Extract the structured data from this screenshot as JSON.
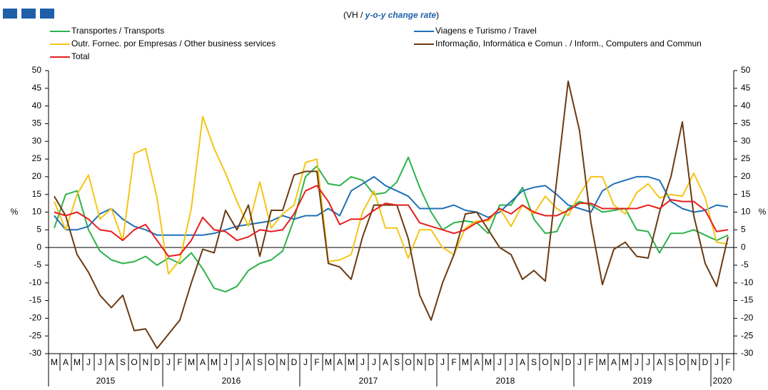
{
  "chart_data": {
    "type": "line",
    "subtitle": {
      "prefix": "(VH / ",
      "emphasis": "y-o-y change rate",
      "suffix": ")"
    },
    "y_label": "%",
    "y2_label": "%",
    "categories": [
      "M",
      "A",
      "M",
      "J",
      "J",
      "A",
      "S",
      "O",
      "N",
      "D",
      "J",
      "F",
      "M",
      "A",
      "M",
      "J",
      "J",
      "A",
      "S",
      "O",
      "N",
      "D",
      "J",
      "F",
      "M",
      "A",
      "M",
      "J",
      "J",
      "A",
      "S",
      "O",
      "N",
      "D",
      "J",
      "F",
      "M",
      "A",
      "M",
      "J",
      "J",
      "A",
      "S",
      "O",
      "N",
      "D",
      "J",
      "F",
      "M",
      "A",
      "M",
      "J",
      "J",
      "A",
      "S",
      "O",
      "N",
      "D",
      "J",
      "F"
    ],
    "x_groups": [
      {
        "label": "2015",
        "count": 10
      },
      {
        "label": "2016",
        "count": 12
      },
      {
        "label": "2017",
        "count": 12
      },
      {
        "label": "2018",
        "count": 12
      },
      {
        "label": "2019",
        "count": 12
      },
      {
        "label": "2020",
        "count": 2
      }
    ],
    "ylim": [
      -30,
      50
    ],
    "yticks": [
      -30,
      -25,
      -20,
      -15,
      -10,
      -5,
      0,
      5,
      10,
      15,
      20,
      25,
      30,
      35,
      40,
      45,
      50
    ],
    "y2lim": [
      -30,
      50
    ],
    "y2ticks": [
      -30,
      -25,
      -20,
      -15,
      -10,
      -5,
      0,
      5,
      10,
      15,
      20,
      25,
      30,
      35,
      40,
      45,
      50
    ],
    "grid": false,
    "series": [
      {
        "name": "Transportes / Transports",
        "color": "#2db34a",
        "values": [
          5.5,
          15,
          16,
          5,
          -1,
          -3.5,
          -4.5,
          -4,
          -2.5,
          -5,
          -3,
          -4.5,
          -1.5,
          -6,
          -11.5,
          -12.5,
          -11,
          -6.5,
          -4.5,
          -3.5,
          -1,
          8,
          20,
          23,
          18,
          17.5,
          20,
          19,
          15,
          15.5,
          18.5,
          25.5,
          17,
          10,
          5,
          7,
          7.5,
          7,
          4,
          12,
          12,
          17,
          8,
          4,
          4.5,
          11,
          13,
          12,
          10,
          10.5,
          11,
          5,
          4.5,
          -1.5,
          4,
          4,
          5,
          3.5,
          2,
          3.5
        ]
      },
      {
        "name": "Viagens e Turismo / Travel",
        "color": "#1f70b8",
        "values": [
          9,
          5,
          5,
          6,
          9.5,
          11,
          8,
          6,
          5,
          3.5,
          3.5,
          3.5,
          3.5,
          3.5,
          4,
          5,
          6,
          6.5,
          7,
          7.5,
          9,
          8,
          9,
          9,
          11,
          9,
          16,
          18,
          20,
          17.5,
          16,
          14.5,
          11,
          11,
          11,
          12,
          10.5,
          10,
          8.5,
          10,
          13,
          16,
          17,
          17.5,
          15,
          12,
          11,
          10,
          16,
          18,
          19,
          20,
          20,
          19,
          13,
          11,
          10,
          10.5,
          12,
          11.5
        ]
      },
      {
        "name": "Outr. Fornec. por Empresas / Other business services",
        "color": "#f5c518",
        "values": [
          13,
          5,
          15,
          20.5,
          8,
          11,
          2,
          26.5,
          28,
          14,
          -7.5,
          -3.5,
          11,
          37,
          28,
          21,
          13,
          6,
          18.5,
          5.5,
          9.5,
          12,
          24,
          25,
          -4,
          -3.5,
          -2,
          10,
          16,
          5.5,
          5.5,
          -3,
          5,
          5,
          0,
          -2,
          5.5,
          7.5,
          7.5,
          11,
          6,
          12,
          9.5,
          14.5,
          11,
          9,
          15,
          20,
          20,
          12,
          9.5,
          15.5,
          18,
          14,
          15,
          14.5,
          21,
          14,
          1.5,
          1
        ]
      },
      {
        "name": "Informação, Informática e Comun . / Inform., Computers and Commun",
        "color": "#6b3a12",
        "values": [
          14.5,
          9,
          -2,
          -7,
          -13.5,
          -17,
          -13.5,
          -23.5,
          -23,
          -28.5,
          -24.5,
          -20.5,
          -10,
          -0.5,
          -1.5,
          10.5,
          5,
          12,
          -2.5,
          10.5,
          10.5,
          20.5,
          21.5,
          21.5,
          -4.5,
          -5.5,
          -9,
          3,
          12,
          12,
          12,
          2.5,
          -13.5,
          -20.5,
          -10,
          -2,
          9.5,
          10,
          5,
          0,
          -2,
          -9,
          -6.5,
          -9.5,
          19,
          47,
          33,
          7,
          -10.5,
          -0.5,
          1.5,
          -2.5,
          -3,
          10,
          20,
          35.5,
          9,
          -4.5,
          -11,
          3
        ]
      },
      {
        "name": "Total",
        "color": "#e61e1e",
        "values": [
          10,
          9,
          10,
          8,
          5,
          4.5,
          2,
          5,
          6.5,
          2,
          -2.5,
          -2,
          2,
          8.5,
          5,
          4.5,
          2,
          3,
          5,
          4.5,
          5,
          9.5,
          16,
          17.5,
          13,
          6.5,
          8,
          8,
          10.5,
          12.5,
          12,
          12,
          7,
          6,
          5,
          4,
          5,
          7,
          8,
          11,
          9.5,
          12,
          10,
          9,
          9,
          10.5,
          12.5,
          12.5,
          11,
          11,
          11,
          11,
          12,
          11,
          13.5,
          13,
          13,
          10.5,
          4.5,
          5
        ]
      }
    ]
  }
}
